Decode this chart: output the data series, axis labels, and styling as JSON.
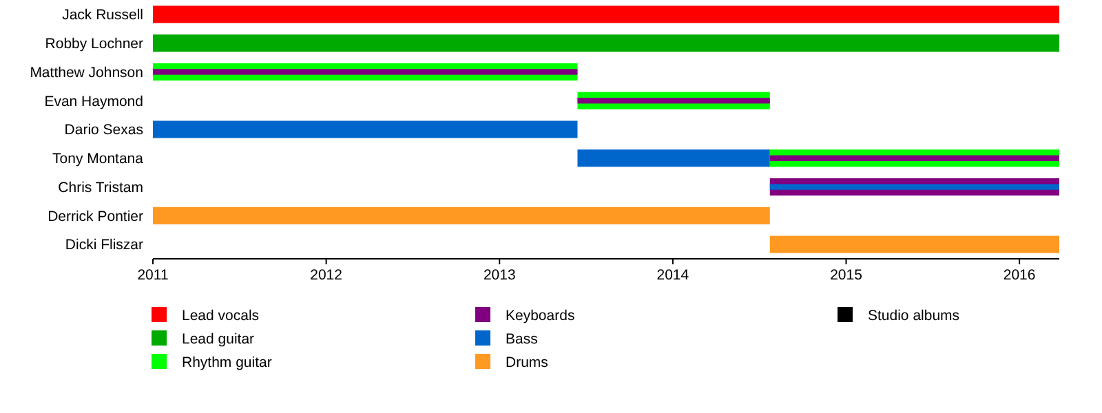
{
  "chart_data": {
    "type": "bar",
    "orientation": "horizontal",
    "categories": [
      "Jack Russell",
      "Robby Lochner",
      "Matthew Johnson",
      "Evan Haymond",
      "Dario Sexas",
      "Tony Montana",
      "Chris Tristam",
      "Derrick Pontier",
      "Dicki Fliszar"
    ],
    "series": [
      {
        "name": "Lead vocals",
        "color": "#ff0000",
        "base": [
          2011,
          null,
          null,
          null,
          null,
          null,
          null,
          null,
          null
        ],
        "values": [
          5.23,
          null,
          null,
          null,
          null,
          null,
          null,
          null,
          null
        ]
      },
      {
        "name": "Lead guitar",
        "color": "#00aa00",
        "base": [
          null,
          2011,
          null,
          null,
          null,
          null,
          null,
          null,
          null
        ],
        "values": [
          null,
          5.23,
          null,
          null,
          null,
          null,
          null,
          null,
          null
        ]
      },
      {
        "name": "Rhythm guitar",
        "color": "#00ff00",
        "base": [
          null,
          null,
          2011,
          2013.45,
          null,
          2014.56,
          null,
          null,
          null
        ],
        "values": [
          null,
          null,
          2.45,
          1.11,
          null,
          1.67,
          null,
          null,
          null
        ]
      },
      {
        "name": "Keyboards",
        "color": "#800080",
        "base": [
          null,
          null,
          2011,
          2013.45,
          null,
          2014.56,
          2014.56,
          null,
          null
        ],
        "values": [
          null,
          null,
          2.45,
          1.11,
          null,
          1.67,
          1.67,
          null,
          null
        ]
      },
      {
        "name": "Bass",
        "color": "#0066cc",
        "base": [
          null,
          null,
          null,
          null,
          2011,
          2013.45,
          2014.56,
          null,
          null
        ],
        "values": [
          null,
          null,
          null,
          null,
          2.45,
          1.11,
          1.67,
          null,
          null
        ]
      },
      {
        "name": "Drums",
        "color": "#ff9922",
        "base": [
          null,
          null,
          null,
          null,
          null,
          null,
          null,
          2011,
          2014.56
        ],
        "values": [
          null,
          null,
          null,
          null,
          null,
          null,
          null,
          3.56,
          1.67
        ]
      },
      {
        "name": "Studio albums",
        "color": "#000000",
        "values": [
          null,
          null,
          null,
          null,
          null,
          null,
          null,
          null,
          null
        ]
      }
    ],
    "xlim": [
      2011,
      2016.23
    ],
    "xticks": [
      2011,
      2012,
      2013,
      2014,
      2015,
      2016
    ],
    "legend": "bottom"
  }
}
